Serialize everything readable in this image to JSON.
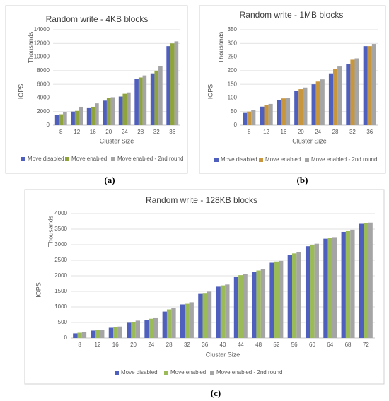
{
  "chart_data": [
    {
      "type": "bar",
      "title": "Random write - 4KB blocks",
      "panel_label": "(a)",
      "xlabel": "Cluster Size",
      "ylabel": "IOPS",
      "yunit": "Thousands",
      "categories": [
        8,
        12,
        16,
        20,
        24,
        28,
        32,
        36
      ],
      "series": [
        {
          "name": "Move disabled",
          "color": "#4f5fbd",
          "values": [
            1500,
            2000,
            2500,
            3600,
            4200,
            6800,
            7600,
            11600
          ]
        },
        {
          "name": "Move enabled",
          "color": "#8fa43c",
          "values": [
            1600,
            2100,
            2700,
            4000,
            4600,
            7000,
            8000,
            12000
          ]
        },
        {
          "name": "Move enabled - 2nd round",
          "color": "#a5a5a5",
          "values": [
            1900,
            2700,
            3200,
            4100,
            4800,
            7300,
            8700,
            12300
          ]
        }
      ],
      "ylim": [
        0,
        14000
      ],
      "yticks": [
        0,
        2000,
        4000,
        6000,
        8000,
        10000,
        12000,
        14000
      ],
      "grid": true
    },
    {
      "type": "bar",
      "title": "Random write - 1MB blocks",
      "panel_label": "(b)",
      "xlabel": "Cluster Size",
      "ylabel": "IOPS",
      "yunit": "Thousands",
      "categories": [
        8,
        12,
        16,
        20,
        24,
        28,
        32,
        36
      ],
      "series": [
        {
          "name": "Move disabled",
          "color": "#4f5fbd",
          "values": [
            45,
            68,
            92,
            125,
            150,
            190,
            225,
            290
          ]
        },
        {
          "name": "Move enabled",
          "color": "#c8963c",
          "values": [
            50,
            75,
            98,
            132,
            160,
            205,
            240,
            290
          ]
        },
        {
          "name": "Move enabled - 2nd round",
          "color": "#a5a5a5",
          "values": [
            55,
            78,
            100,
            138,
            168,
            215,
            245,
            298
          ]
        }
      ],
      "ylim": [
        0,
        350
      ],
      "yticks": [
        0,
        50,
        100,
        150,
        200,
        250,
        300,
        350
      ],
      "grid": true
    },
    {
      "type": "bar",
      "title": "Random write - 128KB blocks",
      "panel_label": "(c)",
      "xlabel": "Cluster Size",
      "ylabel": "IOPS",
      "yunit": "Thousands",
      "categories": [
        8,
        12,
        16,
        20,
        24,
        28,
        32,
        36,
        40,
        44,
        48,
        52,
        56,
        60,
        64,
        68,
        72
      ],
      "series": [
        {
          "name": "Move disabled",
          "color": "#4f5fbd",
          "values": [
            150,
            240,
            330,
            490,
            580,
            850,
            1080,
            1440,
            1650,
            1970,
            2130,
            2420,
            2680,
            2950,
            3190,
            3410,
            3670
          ]
        },
        {
          "name": "Move enabled",
          "color": "#9bbb59",
          "values": [
            170,
            260,
            350,
            520,
            620,
            920,
            1100,
            1450,
            1690,
            2020,
            2170,
            2460,
            2720,
            2990,
            3210,
            3440,
            3690
          ]
        },
        {
          "name": "Move enabled - 2nd round",
          "color": "#a5a5a5",
          "values": [
            190,
            270,
            370,
            560,
            660,
            960,
            1150,
            1490,
            1720,
            2050,
            2220,
            2480,
            2770,
            3030,
            3240,
            3480,
            3710
          ]
        }
      ],
      "ylim": [
        0,
        4000
      ],
      "yticks": [
        0,
        500,
        1000,
        1500,
        2000,
        2500,
        3000,
        3500,
        4000
      ],
      "grid": true
    }
  ]
}
